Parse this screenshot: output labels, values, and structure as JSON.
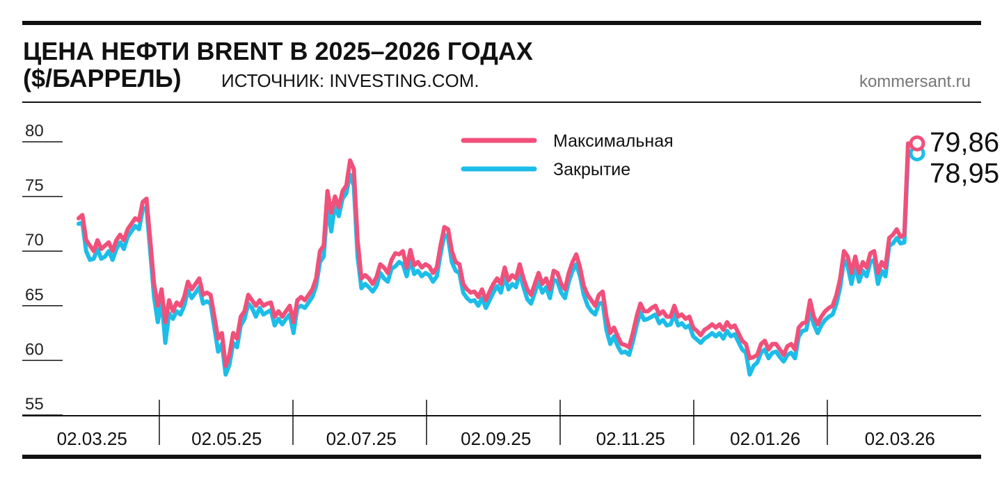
{
  "chart_data": {
    "type": "line",
    "title": "ЦЕНА НЕФТИ BRENT В 2025–2026 ГОДАХ",
    "unit": "($/БАРРЕЛЬ)",
    "source": "ИСТОЧНИК: INVESTING.COM.",
    "brand": "kommersant.ru",
    "x_labels": [
      "02.03.25",
      "02.05.25",
      "02.07.25",
      "02.09.25",
      "02.11.25",
      "02.01.26",
      "02.03.26"
    ],
    "ylim": [
      55,
      80
    ],
    "yticks": [
      55,
      60,
      65,
      70,
      75,
      80
    ],
    "legend": "top",
    "series": [
      {
        "name": "Максимальная",
        "color": "#f0507a",
        "end_label": "79,86",
        "values": [
          73.0,
          73.3,
          71.0,
          70.5,
          70.0,
          71.0,
          70.2,
          70.5,
          70.8,
          70.0,
          71.0,
          71.5,
          71.0,
          72.0,
          72.5,
          73.0,
          72.8,
          74.5,
          74.8,
          71.0,
          67.0,
          65.0,
          66.5,
          63.5,
          65.5,
          64.5,
          65.3,
          65.0,
          65.8,
          67.2,
          66.5,
          67.0,
          67.5,
          66.0,
          66.2,
          66.0,
          64.0,
          62.0,
          62.5,
          59.5,
          60.5,
          62.5,
          62.0,
          64.0,
          64.5,
          66.0,
          65.5,
          65.0,
          65.5,
          65.0,
          65.2,
          65.3,
          64.0,
          64.5,
          64.0,
          64.5,
          65.0,
          63.5,
          65.5,
          65.8,
          65.5,
          66.0,
          66.5,
          67.5,
          70.0,
          70.5,
          75.5,
          73.5,
          75.0,
          74.0,
          75.5,
          76.0,
          78.3,
          77.5,
          71.0,
          67.5,
          67.8,
          67.5,
          67.0,
          67.6,
          68.8,
          68.5,
          68.0,
          69.2,
          69.8,
          69.7,
          70.0,
          68.5,
          70.1,
          68.7,
          69.0,
          68.5,
          68.8,
          68.6,
          68.0,
          68.5,
          70.5,
          72.2,
          72.0,
          70.0,
          69.0,
          68.8,
          67.0,
          66.5,
          66.2,
          66.3,
          65.8,
          66.5,
          65.5,
          66.3,
          67.0,
          67.5,
          67.0,
          68.5,
          67.3,
          67.8,
          67.5,
          68.8,
          67.5,
          66.5,
          66.0,
          67.0,
          68.0,
          67.0,
          67.5,
          66.5,
          68.2,
          68.0,
          67.0,
          66.5,
          68.0,
          69.0,
          69.7,
          68.5,
          66.8,
          66.0,
          65.5,
          65.0,
          66.0,
          66.3,
          64.0,
          62.5,
          63.0,
          62.2,
          61.5,
          61.4,
          61.2,
          62.5,
          64.0,
          65.2,
          64.5,
          64.5,
          64.8,
          65.0,
          64.2,
          64.5,
          64.0,
          64.0,
          65.0,
          64.0,
          64.2,
          63.8,
          64.0,
          63.0,
          62.7,
          62.3,
          62.8,
          63.0,
          63.3,
          63.0,
          63.3,
          62.8,
          63.5,
          63.0,
          63.2,
          62.5,
          61.8,
          61.5,
          60.2,
          60.3,
          60.5,
          61.5,
          61.8,
          61.0,
          61.5,
          61.5,
          61.0,
          60.5,
          61.3,
          61.5,
          61.0,
          63.0,
          63.4,
          63.5,
          65.5,
          64.0,
          63.3,
          64.0,
          64.5,
          64.8,
          65.0,
          66.0,
          67.5,
          70.0,
          69.5,
          68.0,
          69.5,
          68.0,
          69.0,
          68.5,
          69.8,
          70.0,
          68.0,
          69.0,
          68.5,
          71.2,
          71.5,
          72.0,
          71.3,
          71.5,
          79.86
        ]
      },
      {
        "name": "Закрытие",
        "color": "#1cbde8",
        "end_label": "78,95",
        "values": [
          72.5,
          72.6,
          70.0,
          69.2,
          69.3,
          70.2,
          69.3,
          69.5,
          70.0,
          69.2,
          70.2,
          70.8,
          70.2,
          71.3,
          71.8,
          72.3,
          72.0,
          73.8,
          74.0,
          70.0,
          65.8,
          63.5,
          65.5,
          61.6,
          64.3,
          63.8,
          64.5,
          64.2,
          65.0,
          66.4,
          65.7,
          66.2,
          66.7,
          65.2,
          65.4,
          65.2,
          63.0,
          60.8,
          61.5,
          58.7,
          59.6,
          61.6,
          61.2,
          63.2,
          63.8,
          65.2,
          64.8,
          64.0,
          64.8,
          64.2,
          64.4,
          64.6,
          63.2,
          63.8,
          63.3,
          63.8,
          64.2,
          62.5,
          64.8,
          65.0,
          64.8,
          65.3,
          65.8,
          66.8,
          69.0,
          69.5,
          74.2,
          71.8,
          74.2,
          73.2,
          74.8,
          75.3,
          77.0,
          76.0,
          69.5,
          66.6,
          67.0,
          66.7,
          66.3,
          66.8,
          68.0,
          67.5,
          67.2,
          68.4,
          68.6,
          69.0,
          68.8,
          67.7,
          69.2,
          67.9,
          68.2,
          67.7,
          68.0,
          67.8,
          67.2,
          67.7,
          69.7,
          71.5,
          71.2,
          69.0,
          68.2,
          68.0,
          66.2,
          65.7,
          65.4,
          65.5,
          65.0,
          65.7,
          64.8,
          65.5,
          66.2,
          66.8,
          66.2,
          67.7,
          66.5,
          67.0,
          66.7,
          68.0,
          66.7,
          65.6,
          65.2,
          66.2,
          67.2,
          66.2,
          66.7,
          65.7,
          67.4,
          67.2,
          66.2,
          65.7,
          67.2,
          68.2,
          68.8,
          67.7,
          66.0,
          65.0,
          64.5,
          64.2,
          65.2,
          65.3,
          62.8,
          61.5,
          62.2,
          61.3,
          60.7,
          60.8,
          60.5,
          61.7,
          63.2,
          64.4,
          63.7,
          63.8,
          64.0,
          64.2,
          63.4,
          63.7,
          63.2,
          63.3,
          64.2,
          63.2,
          63.4,
          63.0,
          63.2,
          62.2,
          61.9,
          61.6,
          62.0,
          62.2,
          62.5,
          62.2,
          62.5,
          62.0,
          62.7,
          62.2,
          62.4,
          61.7,
          61.0,
          60.7,
          58.7,
          59.5,
          59.8,
          60.7,
          61.0,
          60.2,
          60.7,
          60.8,
          60.3,
          59.9,
          60.5,
          60.7,
          60.2,
          62.2,
          62.7,
          62.8,
          64.5,
          63.3,
          62.5,
          63.2,
          63.7,
          64.0,
          64.2,
          65.2,
          66.7,
          69.2,
          68.6,
          67.0,
          68.7,
          67.2,
          68.2,
          67.7,
          69.0,
          69.2,
          67.0,
          68.2,
          67.7,
          70.5,
          70.7,
          71.2,
          70.7,
          70.8,
          78.95
        ]
      }
    ]
  }
}
